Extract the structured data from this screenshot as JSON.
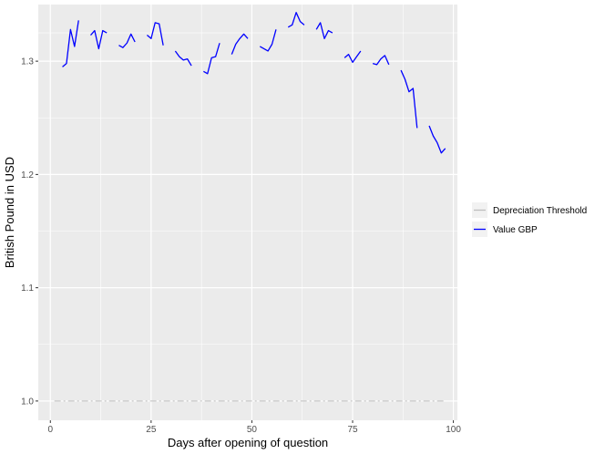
{
  "chart_data": {
    "type": "line",
    "xlabel": "Days after opening of question",
    "ylabel": "British Pound in USD",
    "xlim": [
      -3,
      101
    ],
    "ylim": [
      0.983,
      1.35
    ],
    "x_ticks": [
      0,
      25,
      50,
      75,
      100
    ],
    "y_ticks": [
      1.0,
      1.1,
      1.2,
      1.3
    ],
    "y_tick_labels": [
      "1.0",
      "1.1",
      "1.2",
      "1.3"
    ],
    "grid": true,
    "background": "#ebebeb",
    "legend_position": "right",
    "series": [
      {
        "name": "Depreciation Threshold",
        "color": "#bebebe",
        "linestyle": "dashdot",
        "points": [
          [
            1,
            1.0
          ],
          [
            98,
            1.0
          ]
        ]
      },
      {
        "name": "Value GBP",
        "color": "#0000ff",
        "linestyle": "solid",
        "segments": [
          [
            [
              3,
              1.295
            ],
            [
              4,
              1.298
            ],
            [
              5,
              1.328
            ],
            [
              6,
              1.313
            ],
            [
              7,
              1.336
            ]
          ],
          [
            [
              10,
              1.323
            ],
            [
              11,
              1.327
            ],
            [
              12,
              1.311
            ],
            [
              13,
              1.327
            ],
            [
              14,
              1.325
            ]
          ],
          [
            [
              17,
              1.314
            ],
            [
              18,
              1.312
            ],
            [
              19,
              1.316
            ],
            [
              20,
              1.324
            ],
            [
              21,
              1.317
            ]
          ],
          [
            [
              24,
              1.323
            ],
            [
              25,
              1.32
            ],
            [
              26,
              1.334
            ],
            [
              27,
              1.333
            ],
            [
              28,
              1.314
            ]
          ],
          [
            [
              31,
              1.309
            ],
            [
              32,
              1.304
            ],
            [
              33,
              1.301
            ],
            [
              34,
              1.302
            ],
            [
              35,
              1.296
            ]
          ],
          [
            [
              38,
              1.291
            ],
            [
              39,
              1.289
            ],
            [
              40,
              1.303
            ],
            [
              41,
              1.304
            ],
            [
              42,
              1.316
            ]
          ],
          [
            [
              45,
              1.306
            ],
            [
              46,
              1.315
            ],
            [
              47,
              1.32
            ],
            [
              48,
              1.324
            ],
            [
              49,
              1.32
            ]
          ],
          [
            [
              52,
              1.313
            ],
            [
              53,
              1.311
            ],
            [
              54,
              1.309
            ],
            [
              55,
              1.315
            ],
            [
              56,
              1.328
            ]
          ],
          [
            [
              59,
              1.33
            ],
            [
              60,
              1.332
            ],
            [
              61,
              1.343
            ],
            [
              62,
              1.335
            ],
            [
              63,
              1.332
            ]
          ],
          [
            [
              66,
              1.328
            ],
            [
              67,
              1.334
            ],
            [
              68,
              1.32
            ],
            [
              69,
              1.327
            ],
            [
              70,
              1.325
            ]
          ],
          [
            [
              73,
              1.303
            ],
            [
              74,
              1.306
            ],
            [
              75,
              1.299
            ],
            [
              76,
              1.304
            ],
            [
              77,
              1.309
            ]
          ],
          [
            [
              80,
              1.298
            ],
            [
              81,
              1.297
            ],
            [
              82,
              1.302
            ],
            [
              83,
              1.305
            ],
            [
              84,
              1.297
            ]
          ],
          [
            [
              87,
              1.292
            ],
            [
              88,
              1.284
            ],
            [
              89,
              1.273
            ],
            [
              90,
              1.276
            ],
            [
              91,
              1.241
            ]
          ],
          [
            [
              94,
              1.243
            ],
            [
              95,
              1.234
            ],
            [
              96,
              1.228
            ],
            [
              97,
              1.219
            ],
            [
              98,
              1.223
            ]
          ]
        ]
      }
    ]
  }
}
